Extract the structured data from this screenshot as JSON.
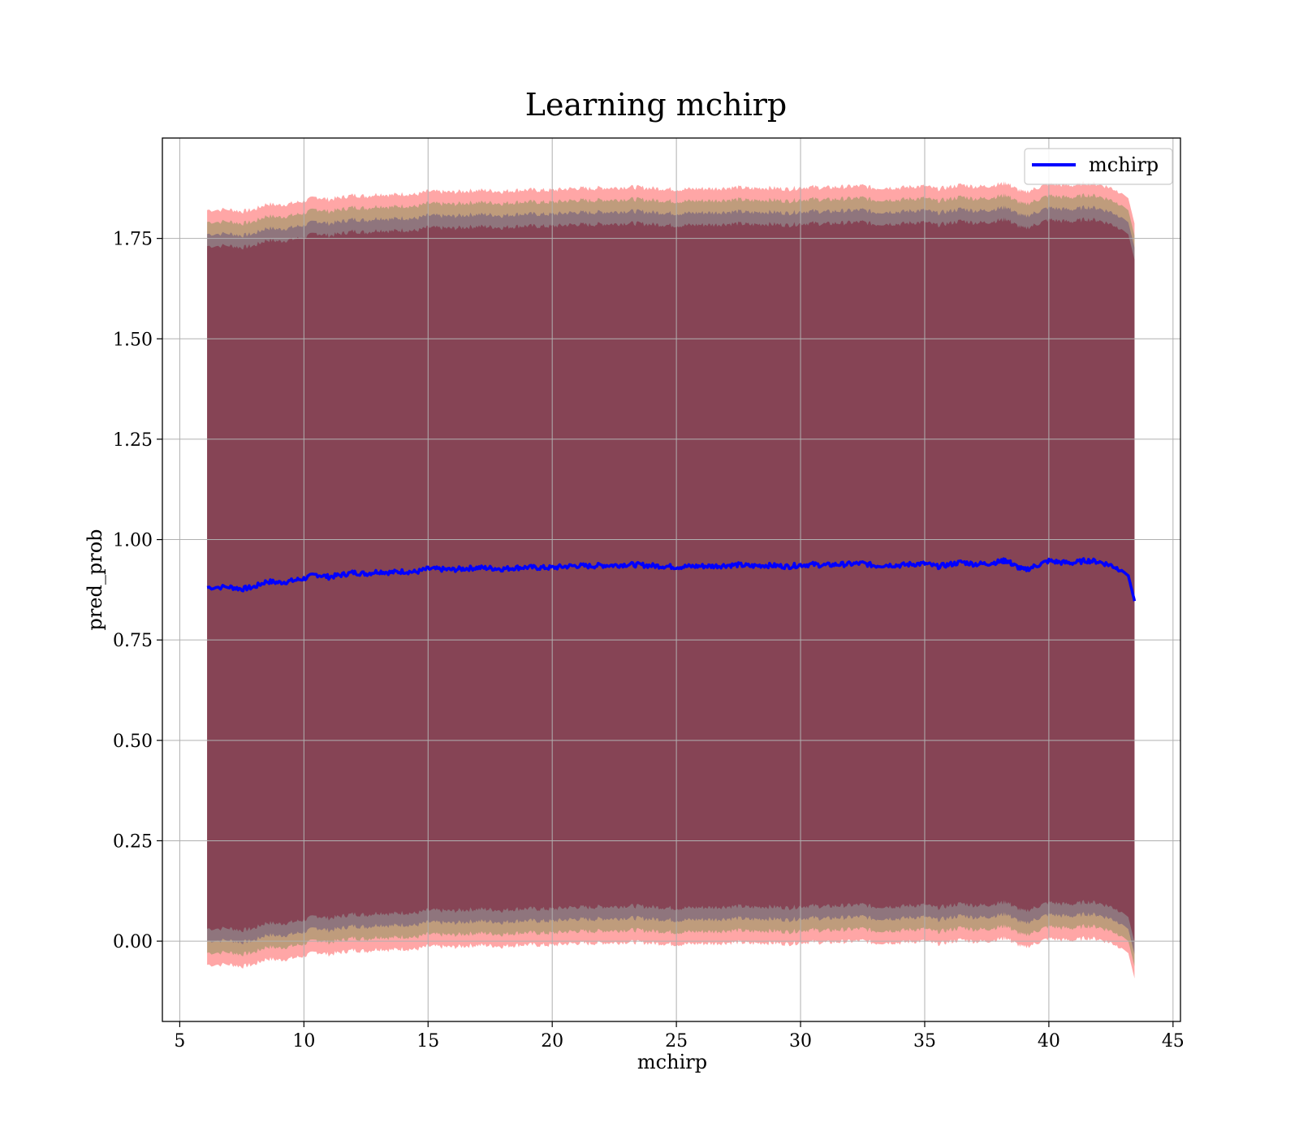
{
  "chart_data": {
    "type": "line",
    "title": "Learning mchirp",
    "xlabel": "mchirp",
    "ylabel": "pred_prob",
    "xlim": [
      4.3,
      45.3
    ],
    "ylim": [
      -0.2,
      2.0
    ],
    "xticks": [
      5,
      10,
      15,
      20,
      25,
      30,
      35,
      40,
      45
    ],
    "xtick_labels": [
      "5",
      "10",
      "15",
      "20",
      "25",
      "30",
      "35",
      "40",
      "45"
    ],
    "yticks": [
      0.0,
      0.25,
      0.5,
      0.75,
      1.0,
      1.25,
      1.5,
      1.75
    ],
    "ytick_labels": [
      "0.00",
      "0.25",
      "0.50",
      "0.75",
      "1.00",
      "1.25",
      "1.50",
      "1.75"
    ],
    "grid": true,
    "legend": {
      "position": "top-right",
      "entries": [
        "mchirp"
      ]
    },
    "series": [
      {
        "name": "mchirp",
        "color": "#0000ff",
        "x": [
          6.1,
          7,
          7.5,
          8,
          8.5,
          9,
          9.5,
          10,
          10.5,
          11,
          11.5,
          12,
          12.5,
          13,
          13.5,
          14,
          14.5,
          15,
          15.5,
          16,
          16.5,
          17,
          17.5,
          18,
          18.5,
          19,
          19.5,
          20,
          20.5,
          21,
          21.5,
          22,
          22.5,
          23,
          23.5,
          24,
          24.5,
          25,
          25.5,
          26,
          26.5,
          27,
          27.5,
          28,
          28.5,
          29,
          29.5,
          30,
          30.5,
          31,
          31.5,
          32,
          32.5,
          33,
          33.5,
          34,
          34.5,
          35,
          35.5,
          36,
          36.5,
          37,
          37.5,
          38,
          38.3,
          38.6,
          39,
          39.5,
          40,
          40.5,
          41,
          41.5,
          42,
          42.5,
          42.9,
          43.2,
          43.45
        ],
        "values": [
          0.881,
          0.882,
          0.877,
          0.882,
          0.896,
          0.893,
          0.897,
          0.903,
          0.913,
          0.907,
          0.912,
          0.918,
          0.915,
          0.921,
          0.918,
          0.921,
          0.919,
          0.927,
          0.926,
          0.925,
          0.928,
          0.93,
          0.929,
          0.927,
          0.93,
          0.931,
          0.93,
          0.93,
          0.933,
          0.935,
          0.934,
          0.936,
          0.936,
          0.938,
          0.937,
          0.935,
          0.934,
          0.932,
          0.933,
          0.934,
          0.934,
          0.936,
          0.937,
          0.934,
          0.936,
          0.935,
          0.933,
          0.937,
          0.938,
          0.936,
          0.938,
          0.939,
          0.941,
          0.935,
          0.937,
          0.936,
          0.939,
          0.94,
          0.933,
          0.938,
          0.944,
          0.939,
          0.94,
          0.945,
          0.948,
          0.936,
          0.924,
          0.935,
          0.947,
          0.943,
          0.942,
          0.948,
          0.945,
          0.936,
          0.925,
          0.91,
          0.847
        ]
      }
    ],
    "bands": [
      {
        "color": "#ff0000",
        "opacity": 0.35,
        "width": 0.94
      },
      {
        "color": "#008000",
        "opacity": 0.25,
        "width": 0.91
      },
      {
        "color": "#000080",
        "opacity": 0.25,
        "width": 0.88
      },
      {
        "color": "#7a0020",
        "opacity": 0.42,
        "width": 0.85
      }
    ]
  }
}
